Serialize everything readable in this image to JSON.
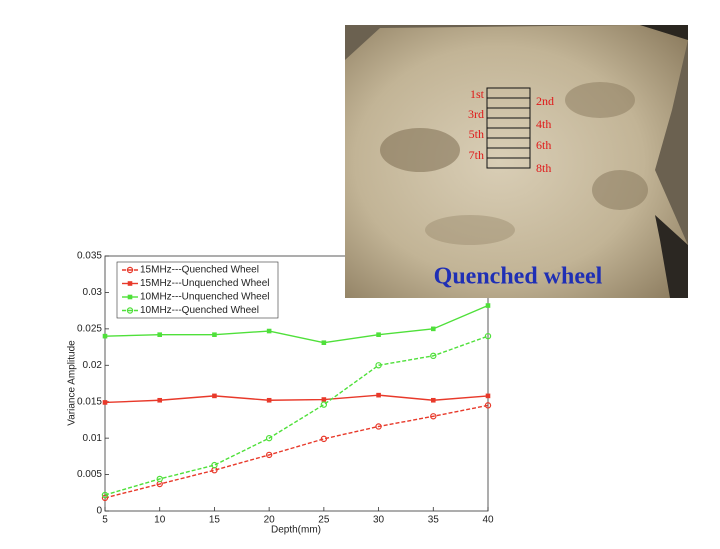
{
  "chart_data": {
    "type": "line",
    "xlabel": "Depth(mm)",
    "ylabel": "Variance Amplitude",
    "x": [
      5,
      10,
      15,
      20,
      25,
      30,
      35,
      40
    ],
    "xlim": [
      5,
      40
    ],
    "xticks": [
      5,
      10,
      15,
      20,
      25,
      30,
      35,
      40
    ],
    "ylim": [
      0,
      0.035
    ],
    "yticks": [
      0,
      0.005,
      0.01,
      0.015,
      0.02,
      0.025,
      0.03,
      0.035
    ],
    "legend": "upper left",
    "series": [
      {
        "name": "15MHz---Quenched Wheel",
        "color": "#e8392a",
        "dashed": true,
        "marker": "circle",
        "values": [
          0.0018,
          0.0037,
          0.0056,
          0.0077,
          0.0099,
          0.0116,
          0.013,
          0.0145
        ]
      },
      {
        "name": "15MHz---Unquenched Wheel",
        "color": "#e8392a",
        "dashed": false,
        "marker": "square",
        "values": [
          0.0149,
          0.0152,
          0.0158,
          0.0152,
          0.0153,
          0.0159,
          0.0152,
          0.0158
        ]
      },
      {
        "name": "10MHz---Unquenched Wheel",
        "color": "#4fe03a",
        "dashed": false,
        "marker": "square",
        "values": [
          0.024,
          0.0242,
          0.0242,
          0.0247,
          0.0231,
          0.0242,
          0.025,
          0.0282
        ]
      },
      {
        "name": "10MHz---Quenched Wheel",
        "color": "#4fe03a",
        "dashed": true,
        "marker": "circle",
        "values": [
          0.0022,
          0.0044,
          0.0063,
          0.01,
          0.0146,
          0.02,
          0.0213,
          0.024
        ]
      }
    ]
  },
  "photo": {
    "left_labels": [
      "1st",
      "3rd",
      "5th",
      "7th"
    ],
    "right_labels": [
      "2nd",
      "4th",
      "6th",
      "8th"
    ],
    "caption": "Quenched wheel"
  }
}
